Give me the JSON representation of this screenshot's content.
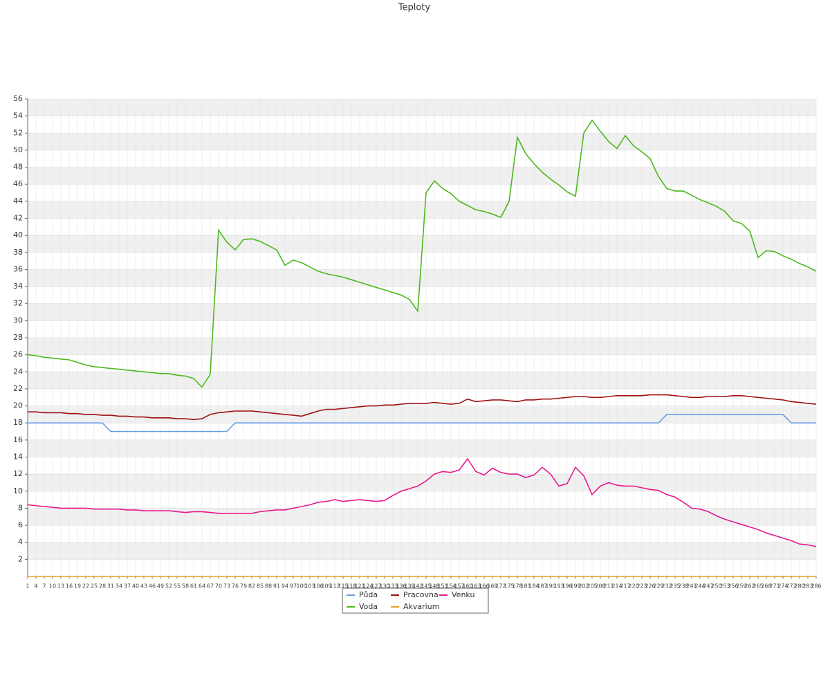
{
  "chart_data": {
    "type": "line",
    "title": "Teploty",
    "categories": [
      "1",
      "4",
      "7",
      "10",
      "13",
      "16",
      "19",
      "22",
      "25",
      "28",
      "31",
      "34",
      "37",
      "40",
      "43",
      "46",
      "49",
      "52",
      "55",
      "58",
      "61",
      "64",
      "67",
      "70",
      "73",
      "76",
      "79",
      "82",
      "85",
      "88",
      "91",
      "94",
      "97",
      "100",
      "103",
      "106",
      "109",
      "112",
      "115",
      "118",
      "121",
      "124",
      "127",
      "130",
      "133",
      "136",
      "139",
      "142",
      "145",
      "148",
      "151",
      "154",
      "157",
      "160",
      "163",
      "166",
      "169",
      "172",
      "175",
      "178",
      "181",
      "184",
      "187",
      "190",
      "193",
      "196",
      "199",
      "202",
      "205",
      "208",
      "211",
      "214",
      "217",
      "220",
      "223",
      "226",
      "229",
      "232",
      "235",
      "238",
      "241",
      "244",
      "247",
      "250",
      "253",
      "256",
      "259",
      "262",
      "265",
      "268",
      "271",
      "274",
      "277",
      "280",
      "283",
      "286"
    ],
    "series": [
      {
        "name": "Půda",
        "color": "#6a9ee8",
        "values": [
          18,
          18,
          18,
          18,
          18,
          18,
          18,
          18,
          18,
          18,
          17,
          17,
          17,
          17,
          17,
          17,
          17,
          17,
          17,
          17,
          17,
          17,
          17,
          17,
          17,
          18,
          18,
          18,
          18,
          18,
          18,
          18,
          18,
          18,
          18,
          18,
          18,
          18,
          18,
          18,
          18,
          18,
          18,
          18,
          18,
          18,
          18,
          18,
          18,
          18,
          18,
          18,
          18,
          18,
          18,
          18,
          18,
          18,
          18,
          18,
          18,
          18,
          18,
          18,
          18,
          18,
          18,
          18,
          18,
          18,
          18,
          18,
          18,
          18,
          18,
          18,
          18,
          19,
          19,
          19,
          19,
          19,
          19,
          19,
          19,
          19,
          19,
          19,
          19,
          19,
          19,
          19,
          18,
          18,
          18,
          18
        ]
      },
      {
        "name": "Voda",
        "color": "#4cb81c",
        "values": [
          26.0,
          25.9,
          25.7,
          25.6,
          25.5,
          25.4,
          25.1,
          24.8,
          24.6,
          24.5,
          24.4,
          24.3,
          24.2,
          24.1,
          24.0,
          23.9,
          23.8,
          23.8,
          23.6,
          23.5,
          23.2,
          22.2,
          23.7,
          40.6,
          39.2,
          38.3,
          39.5,
          39.6,
          39.3,
          38.8,
          38.3,
          36.5,
          37.1,
          36.8,
          36.3,
          35.8,
          35.5,
          35.3,
          35.1,
          34.8,
          34.5,
          34.2,
          33.9,
          33.6,
          33.3,
          33.0,
          32.5,
          31.1,
          45.0,
          46.4,
          45.5,
          44.9,
          44.0,
          43.5,
          43.0,
          42.8,
          42.5,
          42.1,
          44.0,
          51.5,
          49.6,
          48.4,
          47.4,
          46.6,
          45.9,
          45.1,
          44.6,
          52.0,
          53.5,
          52.2,
          51.0,
          50.2,
          51.7,
          50.5,
          49.8,
          49.0,
          46.9,
          45.5,
          45.2,
          45.2,
          44.7,
          44.2,
          43.8,
          43.4,
          42.8,
          41.7,
          41.4,
          40.5,
          37.4,
          38.2,
          38.1,
          37.6,
          37.2,
          36.7,
          36.3,
          35.8
        ]
      },
      {
        "name": "Pracovna",
        "color": "#a01010",
        "values": [
          19.3,
          19.3,
          19.2,
          19.2,
          19.2,
          19.1,
          19.1,
          19.0,
          19.0,
          18.9,
          18.9,
          18.8,
          18.8,
          18.7,
          18.7,
          18.6,
          18.6,
          18.6,
          18.5,
          18.5,
          18.4,
          18.5,
          19.0,
          19.2,
          19.3,
          19.4,
          19.4,
          19.4,
          19.3,
          19.2,
          19.1,
          19.0,
          18.9,
          18.8,
          19.1,
          19.4,
          19.6,
          19.6,
          19.7,
          19.8,
          19.9,
          20.0,
          20.0,
          20.1,
          20.1,
          20.2,
          20.3,
          20.3,
          20.3,
          20.4,
          20.3,
          20.2,
          20.3,
          20.8,
          20.5,
          20.6,
          20.7,
          20.7,
          20.6,
          20.5,
          20.7,
          20.7,
          20.8,
          20.8,
          20.9,
          21.0,
          21.1,
          21.1,
          21.0,
          21.0,
          21.1,
          21.2,
          21.2,
          21.2,
          21.2,
          21.3,
          21.3,
          21.3,
          21.2,
          21.1,
          21.0,
          21.0,
          21.1,
          21.1,
          21.1,
          21.2,
          21.2,
          21.1,
          21.0,
          20.9,
          20.8,
          20.7,
          20.5,
          20.4,
          20.3,
          20.2
        ]
      },
      {
        "name": "Akvarium",
        "color": "#e8a020",
        "values": [
          0,
          0,
          0,
          0,
          0,
          0,
          0,
          0,
          0,
          0,
          0,
          0,
          0,
          0,
          0,
          0,
          0,
          0,
          0,
          0,
          0,
          0,
          0,
          0,
          0,
          0,
          0,
          0,
          0,
          0,
          0,
          0,
          0,
          0,
          0,
          0,
          0,
          0,
          0,
          0,
          0,
          0,
          0,
          0,
          0,
          0,
          0,
          0,
          0,
          0,
          0,
          0,
          0,
          0,
          0,
          0,
          0,
          0,
          0,
          0,
          0,
          0,
          0,
          0,
          0,
          0,
          0,
          0,
          0,
          0,
          0,
          0,
          0,
          0,
          0,
          0,
          0,
          0,
          0,
          0,
          0,
          0,
          0,
          0,
          0,
          0,
          0,
          0,
          0,
          0,
          0,
          0,
          0,
          0,
          0,
          0
        ]
      },
      {
        "name": "Venku",
        "color": "#e8188c",
        "values": [
          8.4,
          8.3,
          8.2,
          8.1,
          8.0,
          8.0,
          8.0,
          8.0,
          7.9,
          7.9,
          7.9,
          7.9,
          7.8,
          7.8,
          7.7,
          7.7,
          7.7,
          7.7,
          7.6,
          7.5,
          7.6,
          7.6,
          7.5,
          7.4,
          7.4,
          7.4,
          7.4,
          7.4,
          7.6,
          7.7,
          7.8,
          7.8,
          8.0,
          8.2,
          8.4,
          8.7,
          8.8,
          9.0,
          8.8,
          8.9,
          9.0,
          8.9,
          8.8,
          8.9,
          9.5,
          10.0,
          10.3,
          10.6,
          11.2,
          12.0,
          12.3,
          12.2,
          12.5,
          13.8,
          12.3,
          11.9,
          12.7,
          12.2,
          12.0,
          12.0,
          11.6,
          11.9,
          12.8,
          12.0,
          10.6,
          10.9,
          12.8,
          11.8,
          9.6,
          10.6,
          11.0,
          10.7,
          10.6,
          10.6,
          10.4,
          10.2,
          10.1,
          9.6,
          9.3,
          8.7,
          8.0,
          7.9,
          7.6,
          7.1,
          6.7,
          6.4,
          6.1,
          5.8,
          5.5,
          5.1,
          4.8,
          4.5,
          4.2,
          3.8,
          3.7,
          3.5
        ]
      }
    ],
    "ylim": [
      0,
      56
    ],
    "yticks": [
      2,
      4,
      6,
      8,
      10,
      12,
      14,
      16,
      18,
      20,
      22,
      24,
      26,
      28,
      30,
      32,
      34,
      36,
      38,
      40,
      42,
      44,
      46,
      48,
      50,
      52,
      54,
      56
    ],
    "grid": true,
    "legend": "bottom"
  }
}
